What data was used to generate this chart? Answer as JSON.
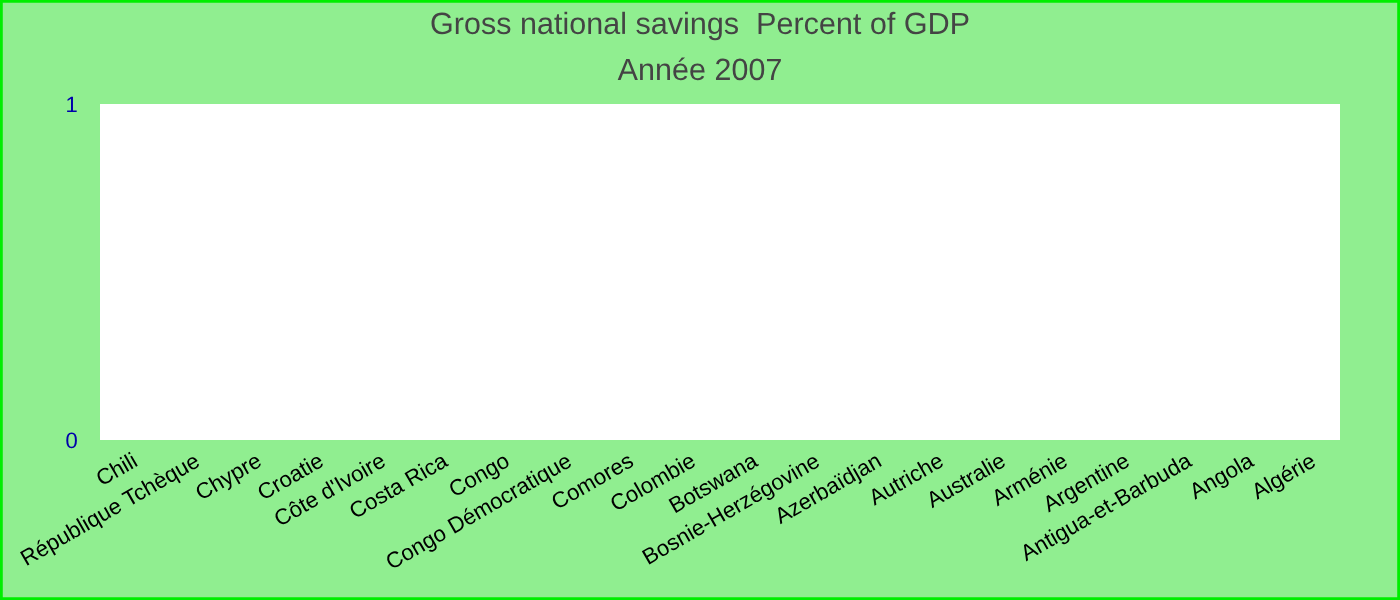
{
  "chart_data": {
    "type": "bar",
    "title": "Gross national savings  Percent of GDP",
    "subtitle": "Année 2007",
    "categories": [
      "Chili",
      "République Tchèque",
      "Chypre",
      "Croatie",
      "Côte d'Ivoire",
      "Costa Rica",
      "Congo",
      "Congo Démocratique",
      "Comores",
      "Colombie",
      "Botswana",
      "Bosnie-Herzégovine",
      "Azerbaïdjan",
      "Autriche",
      "Australie",
      "Arménie",
      "Argentine",
      "Antigua-et-Barbuda",
      "Angola",
      "Algérie"
    ],
    "values": [
      null,
      null,
      null,
      null,
      null,
      null,
      null,
      null,
      null,
      null,
      null,
      null,
      null,
      null,
      null,
      null,
      null,
      null,
      null,
      null
    ],
    "ylim": [
      0,
      1
    ],
    "yticks": [
      0,
      1
    ],
    "grid": false
  }
}
